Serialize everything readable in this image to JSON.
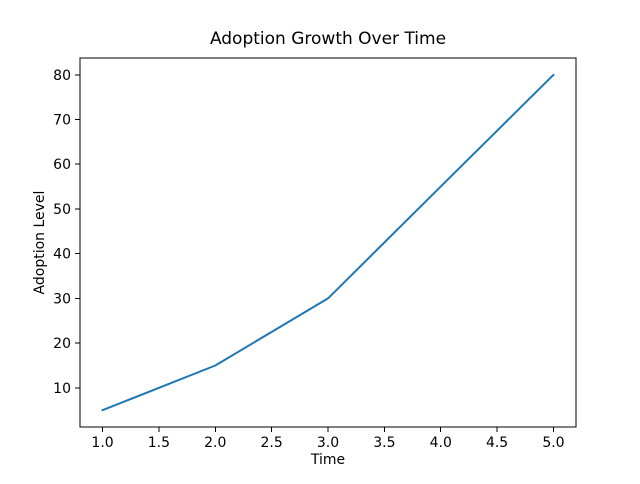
{
  "chart_data": {
    "type": "line",
    "title": "Adoption Growth Over Time",
    "xlabel": "Time",
    "ylabel": "Adoption Level",
    "x": [
      1,
      2,
      3,
      4,
      5
    ],
    "y": [
      5,
      15,
      30,
      55,
      80
    ],
    "xlim": [
      0.8,
      5.2
    ],
    "ylim": [
      1.25,
      83.75
    ],
    "x_ticks": [
      1.0,
      1.5,
      2.0,
      2.5,
      3.0,
      3.5,
      4.0,
      4.5,
      5.0
    ],
    "x_tick_labels": [
      "1.0",
      "1.5",
      "2.0",
      "2.5",
      "3.0",
      "3.5",
      "4.0",
      "4.5",
      "5.0"
    ],
    "y_ticks": [
      10,
      20,
      30,
      40,
      50,
      60,
      70,
      80
    ],
    "y_tick_labels": [
      "10",
      "20",
      "30",
      "40",
      "50",
      "60",
      "70",
      "80"
    ],
    "line_color": "#1f77b4",
    "frame_color": "#000000",
    "background_color": "#ffffff",
    "grid": false,
    "legend": "none"
  }
}
